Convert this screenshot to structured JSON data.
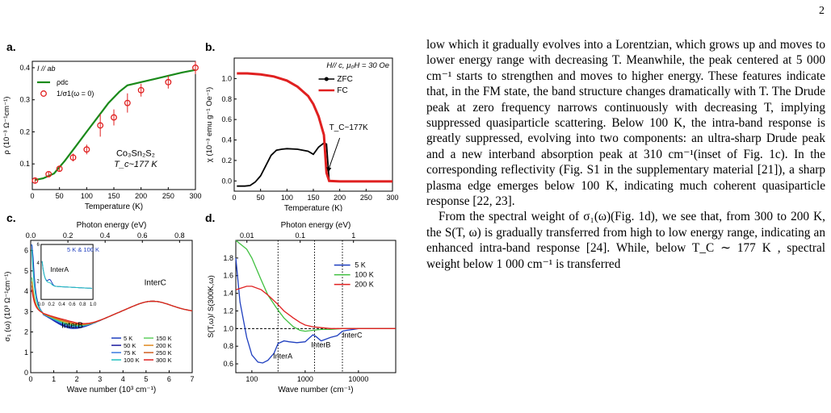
{
  "page_number": "2",
  "panels": {
    "a": {
      "label": "a."
    },
    "b": {
      "label": "b."
    },
    "c": {
      "label": "c."
    },
    "d": {
      "label": "d."
    }
  },
  "chart_data": [
    {
      "panel": "a",
      "type": "line",
      "xlabel": "Temperature (K)",
      "ylabel": "ρ (10⁻³ Ω⁻¹cm⁻¹)",
      "xlim": [
        0,
        300
      ],
      "ylim": [
        0.02,
        0.42
      ],
      "xticks": [
        0,
        50,
        100,
        150,
        200,
        250,
        300
      ],
      "yticks": [
        0.1,
        0.2,
        0.3,
        0.4
      ],
      "annotations": [
        "I // ab",
        "Co₃Sn₂S₂",
        "T_c~177 K"
      ],
      "legend": [
        "ρdc",
        "1/σ1(ω = 0)"
      ],
      "series": [
        {
          "name": "ρdc",
          "color": "#1a8a1a",
          "x": [
            5,
            20,
            40,
            60,
            80,
            100,
            120,
            140,
            160,
            175,
            200,
            225,
            250,
            275,
            300
          ],
          "y": [
            0.05,
            0.055,
            0.07,
            0.11,
            0.155,
            0.2,
            0.245,
            0.29,
            0.325,
            0.345,
            0.355,
            0.365,
            0.375,
            0.385,
            0.393
          ]
        },
        {
          "name": "1/σ1(ω = 0)",
          "color": "#e02020",
          "x": [
            5,
            30,
            50,
            75,
            100,
            125,
            150,
            175,
            200,
            250,
            300
          ],
          "y": [
            0.048,
            0.068,
            0.085,
            0.12,
            0.145,
            0.22,
            0.245,
            0.29,
            0.33,
            0.355,
            0.4
          ],
          "err": [
            0.008,
            0.008,
            0.008,
            0.012,
            0.015,
            0.035,
            0.025,
            0.03,
            0.02,
            0.02,
            0.02
          ]
        }
      ]
    },
    {
      "panel": "b",
      "type": "line",
      "xlabel": "Temperature (K)",
      "ylabel": "χ (10⁻³ emu g⁻¹ Oe⁻¹)",
      "xlim": [
        0,
        300
      ],
      "ylim": [
        -0.1,
        1.2
      ],
      "xticks": [
        0,
        50,
        100,
        150,
        200,
        250,
        300
      ],
      "yticks": [
        0.0,
        0.2,
        0.4,
        0.6,
        0.8,
        1.0
      ],
      "annotations": [
        "H// c, μ₀H = 30 Oe",
        "T_C~177K"
      ],
      "legend": [
        "ZFC",
        "FC"
      ],
      "series": [
        {
          "name": "ZFC",
          "color": "#000000",
          "x": [
            5,
            20,
            30,
            40,
            50,
            60,
            70,
            80,
            90,
            100,
            120,
            140,
            150,
            160,
            170,
            175,
            180,
            200,
            250,
            300
          ],
          "y": [
            -0.05,
            -0.05,
            -0.045,
            -0.01,
            0.05,
            0.15,
            0.25,
            0.3,
            0.31,
            0.315,
            0.31,
            0.29,
            0.26,
            0.33,
            0.37,
            0.36,
            0.0,
            -0.005,
            -0.005,
            -0.005
          ]
        },
        {
          "name": "FC",
          "color": "#e02020",
          "x": [
            5,
            25,
            50,
            75,
            100,
            120,
            140,
            150,
            160,
            170,
            175,
            180,
            200,
            250,
            300
          ],
          "y": [
            1.05,
            1.05,
            1.04,
            1.02,
            0.98,
            0.92,
            0.83,
            0.75,
            0.63,
            0.45,
            0.08,
            0.0,
            -0.005,
            -0.005,
            -0.005
          ]
        }
      ]
    },
    {
      "panel": "c",
      "type": "line",
      "xlabel": "Wave number (10³ cm⁻¹)",
      "x2label": "Photon energy (eV)",
      "ylabel": "σ₁ (ω) (10³ Ω⁻¹cm⁻¹)",
      "xlim": [
        0,
        7
      ],
      "ylim": [
        0,
        6.5
      ],
      "xticks": [
        0,
        1,
        2,
        3,
        4,
        5,
        6,
        7
      ],
      "yticks": [
        0,
        1,
        2,
        3,
        4,
        5,
        6
      ],
      "x2ticks": [
        "0.0",
        "0.2",
        "0.4",
        "0.6",
        "0.8"
      ],
      "annotations": [
        "InterB",
        "InterC",
        "InterA",
        "5 K & 100 K"
      ],
      "legend": [
        "5 K",
        "50 K",
        "75 K",
        "100 K",
        "150 K",
        "200 K",
        "250 K",
        "300 K"
      ],
      "legend_colors": [
        "#1f3fbf",
        "#1a1a9e",
        "#3a7ae0",
        "#20c0c0",
        "#60d060",
        "#e08a20",
        "#d06020",
        "#e02020"
      ],
      "inset": {
        "xlim": [
          0,
          1
        ],
        "ylim": [
          0,
          6
        ],
        "xticks": [
          "0.0",
          "0.2",
          "0.4",
          "0.6",
          "0.8",
          "1.0"
        ],
        "yticks": [
          2,
          4,
          6
        ]
      }
    },
    {
      "panel": "d",
      "type": "line",
      "xlabel": "Wave number (cm⁻¹)",
      "x2label": "Photon energy (eV)",
      "ylabel": "S(T,ω)/ S(300K,ω)",
      "xscale": "log",
      "xlim": [
        50,
        50000
      ],
      "ylim": [
        0.5,
        2.0
      ],
      "xticks": [
        "100",
        "1000",
        "10000"
      ],
      "yticks": [
        0.6,
        0.8,
        1.0,
        1.2,
        1.4,
        1.6,
        1.8
      ],
      "x2ticks": [
        "0.01",
        "0.1",
        "1"
      ],
      "annotations": [
        "InterA",
        "InterB",
        "InterC"
      ],
      "legend": [
        "5 K",
        "100 K",
        "200 K"
      ],
      "series": [
        {
          "name": "5 K",
          "color": "#1f3fbf",
          "x": [
            50,
            60,
            80,
            100,
            130,
            160,
            200,
            260,
            310,
            400,
            500,
            700,
            1000,
            1400,
            1600,
            2000,
            3000,
            4000,
            5000,
            6000,
            8000,
            10000,
            20000,
            50000
          ],
          "y": [
            1.8,
            1.3,
            0.9,
            0.7,
            0.62,
            0.61,
            0.64,
            0.72,
            0.83,
            0.86,
            0.85,
            0.84,
            0.85,
            0.93,
            0.91,
            0.86,
            0.9,
            0.92,
            0.97,
            0.98,
            0.99,
            1.0,
            1.0,
            1.0
          ]
        },
        {
          "name": "100 K",
          "color": "#40c040",
          "x": [
            50,
            80,
            100,
            150,
            200,
            300,
            400,
            600,
            800,
            1000,
            1400,
            2000,
            3000,
            5000,
            10000,
            50000
          ],
          "y": [
            2.0,
            1.9,
            1.8,
            1.55,
            1.38,
            1.22,
            1.12,
            1.02,
            0.98,
            0.97,
            0.98,
            0.99,
            0.99,
            1.0,
            1.0,
            1.0
          ]
        },
        {
          "name": "200 K",
          "color": "#e02020",
          "x": [
            50,
            80,
            100,
            150,
            200,
            300,
            400,
            600,
            800,
            1000,
            1400,
            2000,
            3000,
            5000,
            10000,
            50000
          ],
          "y": [
            1.44,
            1.48,
            1.48,
            1.44,
            1.38,
            1.28,
            1.2,
            1.12,
            1.07,
            1.04,
            1.02,
            1.01,
            1.0,
            1.0,
            1.0,
            1.0
          ]
        }
      ]
    }
  ],
  "text": {
    "p1": "low which it gradually evolves into a Lorentzian, which grows up and moves to lower energy range with decreasing T. Meanwhile, the peak centered at 5 000 cm⁻¹ starts to strengthen and moves to higher energy. These features indicate that, in the FM state, the band structure changes dramatically with T. The Drude peak at zero frequency narrows continuously with decreasing T, implying suppressed quasiparticle scattering. Below 100 K, the intra-band response is greatly suppressed, evolving into two components: an ultra-sharp Drude peak and a new interband absorption peak at 310 cm⁻¹(inset of Fig. 1c). In the corresponding reflectivity (Fig. S1 in the supplementary material [21]), a sharp plasma edge emerges below 100 K, indicating much coherent quasiparticle response [22, 23].",
    "p2": "From the spectral weight of σ₁(ω)(Fig. 1d), we see that, from 300 to 200 K, the S(T, ω) is gradually transferred from high to low energy range, indicating an enhanced intra-band response [24]. While, below T_C ∼ 177 K , spectral weight below 1 000 cm⁻¹ is transferred"
  }
}
